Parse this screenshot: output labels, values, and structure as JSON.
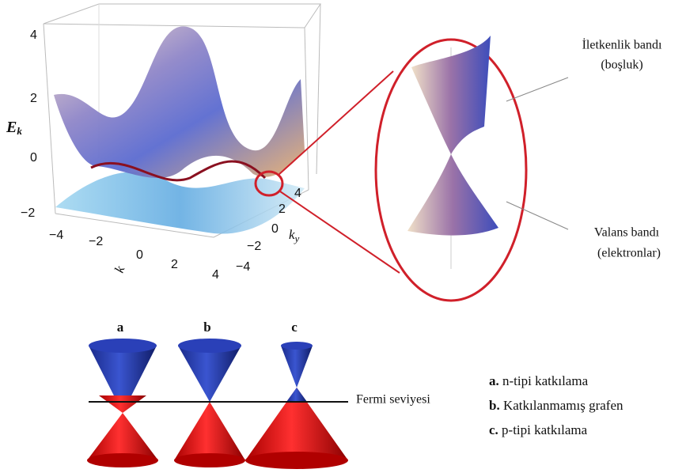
{
  "surface_plot": {
    "z_label": "E",
    "z_label_sub": "k",
    "z_ticks": [
      "4",
      "2",
      "0",
      "−2"
    ],
    "x_ticks": [
      "−4",
      "−2",
      "0",
      "2",
      "4"
    ],
    "x_label": "k",
    "y_label": "k",
    "y_label_sub": "y",
    "y_ticks": [
      "4",
      "2",
      "0",
      "−2",
      "−4"
    ]
  },
  "zoom": {
    "conduction_label": [
      "İletkenlik bandı",
      "(boşluk)"
    ],
    "valence_label": [
      "Valans bandı",
      "(elektronlar)"
    ]
  },
  "cones": {
    "labels": [
      "a",
      "b",
      "c"
    ],
    "fermi_label": "Fermi seviyesi"
  },
  "legend": [
    {
      "key": "a.",
      "text": "n-tipi katkılama"
    },
    {
      "key": "b.",
      "text": "Katkılanmamış grafen"
    },
    {
      "key": "c.",
      "text": "p-tipi katkılama"
    }
  ]
}
